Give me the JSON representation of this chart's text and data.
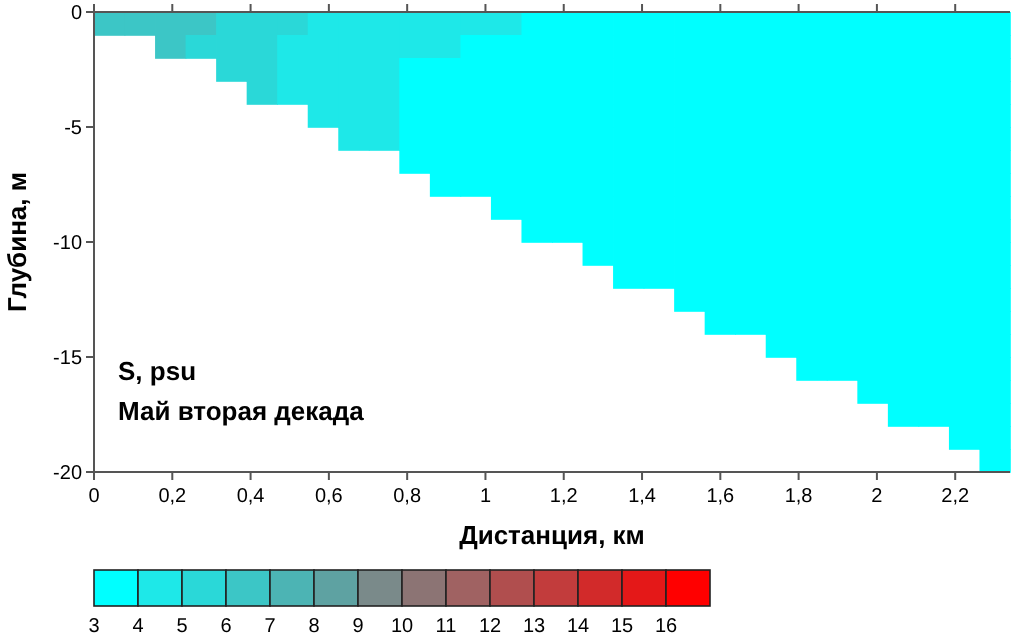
{
  "chart_data": {
    "type": "heatmap",
    "xlabel": "Дистанция, км",
    "ylabel": "Глубина, м",
    "annotations": [
      "S, psu",
      "Май вторая декада"
    ],
    "xlim": [
      0,
      2.34
    ],
    "ylim": [
      -20,
      0
    ],
    "xticks": [
      0,
      {
        "value": 0.2,
        "label": "0,2"
      },
      {
        "value": 0.4,
        "label": "0,4"
      },
      {
        "value": 0.6,
        "label": "0,6"
      },
      {
        "value": 0.8,
        "label": "0,8"
      },
      1,
      {
        "value": 1.2,
        "label": "1,2"
      },
      {
        "value": 1.4,
        "label": "1,4"
      },
      {
        "value": 1.6,
        "label": "1,6"
      },
      {
        "value": 1.8,
        "label": "1,8"
      },
      2,
      {
        "value": 2.2,
        "label": "2,2"
      }
    ],
    "yticks": [
      0,
      -5,
      -10,
      -15,
      -20
    ],
    "clim": [
      3,
      17
    ],
    "cticks": [
      3,
      4,
      5,
      6,
      7,
      8,
      9,
      10,
      11,
      12,
      13,
      14,
      15,
      16
    ],
    "colors": [
      "#00ffff",
      "#1ee8e8",
      "#2ad8d8",
      "#3cc6c6",
      "#4cb4b4",
      "#5ea2a2",
      "#7a8a8a",
      "#8c7474",
      "#a06262",
      "#b04e4e",
      "#c23c3c",
      "#d22a2a",
      "#e41818",
      "#ff0000"
    ],
    "cells": [
      [
        6.5,
        6.5,
        6.5,
        6.5,
        5.5,
        5.5,
        5.5,
        4.5,
        4.5,
        4.5,
        4.5,
        4.5,
        4.5,
        4.5,
        3.5,
        3.5,
        3.5,
        3.5,
        3.5,
        3.5,
        3.5,
        3.5,
        3.5,
        3.5,
        3.5,
        3.5,
        3.5,
        3.5,
        3.5,
        3.5
      ],
      [
        null,
        null,
        6.5,
        5.5,
        5.5,
        5.5,
        4.5,
        4.5,
        4.5,
        4.5,
        4.5,
        4.5,
        3.5,
        3.5,
        3.5,
        3.5,
        3.5,
        3.5,
        3.5,
        3.5,
        3.5,
        3.5,
        3.5,
        3.5,
        3.5,
        3.5,
        3.5,
        3.5,
        3.5,
        3.5
      ],
      [
        null,
        null,
        null,
        null,
        5.5,
        5.5,
        4.5,
        4.5,
        4.5,
        4.5,
        3.5,
        3.5,
        3.5,
        3.5,
        3.5,
        3.5,
        3.5,
        3.5,
        3.5,
        3.5,
        3.5,
        3.5,
        3.5,
        3.5,
        3.5,
        3.5,
        3.5,
        3.5,
        3.5,
        3.5
      ],
      [
        null,
        null,
        null,
        null,
        null,
        5.5,
        4.5,
        4.5,
        4.5,
        4.5,
        3.5,
        3.5,
        3.5,
        3.5,
        3.5,
        3.5,
        3.5,
        3.5,
        3.5,
        3.5,
        3.5,
        3.5,
        3.5,
        3.5,
        3.5,
        3.5,
        3.5,
        3.5,
        3.5,
        3.5
      ],
      [
        null,
        null,
        null,
        null,
        null,
        null,
        null,
        4.5,
        4.5,
        4.5,
        3.5,
        3.5,
        3.5,
        3.5,
        3.5,
        3.5,
        3.5,
        3.5,
        3.5,
        3.5,
        3.5,
        3.5,
        3.5,
        3.5,
        3.5,
        3.5,
        3.5,
        3.5,
        3.5,
        3.5
      ],
      [
        null,
        null,
        null,
        null,
        null,
        null,
        null,
        null,
        4.5,
        4.5,
        3.5,
        3.5,
        3.5,
        3.5,
        3.5,
        3.5,
        3.5,
        3.5,
        3.5,
        3.5,
        3.5,
        3.5,
        3.5,
        3.5,
        3.5,
        3.5,
        3.5,
        3.5,
        3.5,
        3.5
      ],
      [
        null,
        null,
        null,
        null,
        null,
        null,
        null,
        null,
        null,
        null,
        3.5,
        3.5,
        3.5,
        3.5,
        3.5,
        3.5,
        3.5,
        3.5,
        3.5,
        3.5,
        3.5,
        3.5,
        3.5,
        3.5,
        3.5,
        3.5,
        3.5,
        3.5,
        3.5,
        3.5
      ],
      [
        null,
        null,
        null,
        null,
        null,
        null,
        null,
        null,
        null,
        null,
        null,
        3.5,
        3.5,
        3.5,
        3.5,
        3.5,
        3.5,
        3.5,
        3.5,
        3.5,
        3.5,
        3.5,
        3.5,
        3.5,
        3.5,
        3.5,
        3.5,
        3.5,
        3.5,
        3.5
      ],
      [
        null,
        null,
        null,
        null,
        null,
        null,
        null,
        null,
        null,
        null,
        null,
        null,
        null,
        3.5,
        3.5,
        3.5,
        3.5,
        3.5,
        3.5,
        3.5,
        3.5,
        3.5,
        3.5,
        3.5,
        3.5,
        3.5,
        3.5,
        3.5,
        3.5,
        3.5
      ],
      [
        null,
        null,
        null,
        null,
        null,
        null,
        null,
        null,
        null,
        null,
        null,
        null,
        null,
        null,
        3.5,
        3.5,
        3.5,
        3.5,
        3.5,
        3.5,
        3.5,
        3.5,
        3.5,
        3.5,
        3.5,
        3.5,
        3.5,
        3.5,
        3.5,
        3.5
      ],
      [
        null,
        null,
        null,
        null,
        null,
        null,
        null,
        null,
        null,
        null,
        null,
        null,
        null,
        null,
        null,
        null,
        3.5,
        3.5,
        3.5,
        3.5,
        3.5,
        3.5,
        3.5,
        3.5,
        3.5,
        3.5,
        3.5,
        3.5,
        3.5,
        3.5
      ],
      [
        null,
        null,
        null,
        null,
        null,
        null,
        null,
        null,
        null,
        null,
        null,
        null,
        null,
        null,
        null,
        null,
        null,
        3.5,
        3.5,
        3.5,
        3.5,
        3.5,
        3.5,
        3.5,
        3.5,
        3.5,
        3.5,
        3.5,
        3.5,
        3.5
      ],
      [
        null,
        null,
        null,
        null,
        null,
        null,
        null,
        null,
        null,
        null,
        null,
        null,
        null,
        null,
        null,
        null,
        null,
        null,
        null,
        3.5,
        3.5,
        3.5,
        3.5,
        3.5,
        3.5,
        3.5,
        3.5,
        3.5,
        3.5,
        3.5
      ],
      [
        null,
        null,
        null,
        null,
        null,
        null,
        null,
        null,
        null,
        null,
        null,
        null,
        null,
        null,
        null,
        null,
        null,
        null,
        null,
        null,
        3.5,
        3.5,
        3.5,
        3.5,
        3.5,
        3.5,
        3.5,
        3.5,
        3.5,
        3.5
      ],
      [
        null,
        null,
        null,
        null,
        null,
        null,
        null,
        null,
        null,
        null,
        null,
        null,
        null,
        null,
        null,
        null,
        null,
        null,
        null,
        null,
        null,
        null,
        3.5,
        3.5,
        3.5,
        3.5,
        3.5,
        3.5,
        3.5,
        3.5
      ],
      [
        null,
        null,
        null,
        null,
        null,
        null,
        null,
        null,
        null,
        null,
        null,
        null,
        null,
        null,
        null,
        null,
        null,
        null,
        null,
        null,
        null,
        null,
        null,
        3.5,
        3.5,
        3.5,
        3.5,
        3.5,
        3.5,
        3.5
      ],
      [
        null,
        null,
        null,
        null,
        null,
        null,
        null,
        null,
        null,
        null,
        null,
        null,
        null,
        null,
        null,
        null,
        null,
        null,
        null,
        null,
        null,
        null,
        null,
        null,
        null,
        3.5,
        3.5,
        3.5,
        3.5,
        3.5
      ],
      [
        null,
        null,
        null,
        null,
        null,
        null,
        null,
        null,
        null,
        null,
        null,
        null,
        null,
        null,
        null,
        null,
        null,
        null,
        null,
        null,
        null,
        null,
        null,
        null,
        null,
        null,
        3.5,
        3.5,
        3.5,
        3.5
      ],
      [
        null,
        null,
        null,
        null,
        null,
        null,
        null,
        null,
        null,
        null,
        null,
        null,
        null,
        null,
        null,
        null,
        null,
        null,
        null,
        null,
        null,
        null,
        null,
        null,
        null,
        null,
        null,
        null,
        3.5,
        3.5
      ],
      [
        null,
        null,
        null,
        null,
        null,
        null,
        null,
        null,
        null,
        null,
        null,
        null,
        null,
        null,
        null,
        null,
        null,
        null,
        null,
        null,
        null,
        null,
        null,
        null,
        null,
        null,
        null,
        null,
        null,
        3.5
      ]
    ]
  }
}
